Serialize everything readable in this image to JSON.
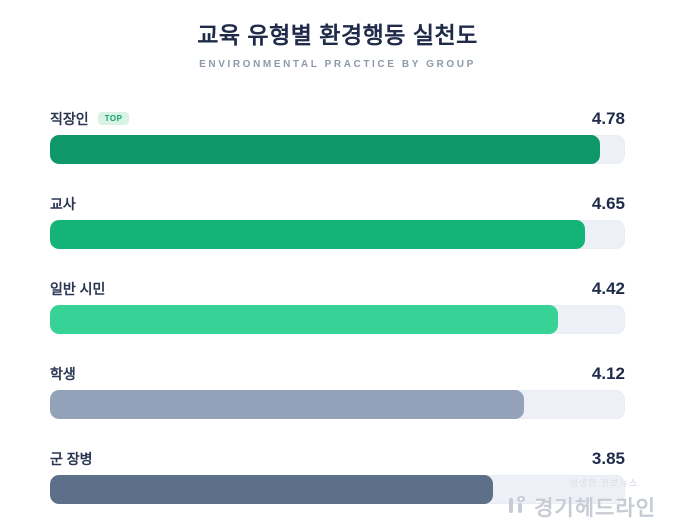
{
  "header": {
    "title": "교육 유형별 환경행동 실천도",
    "subtitle": "ENVIRONMENTAL PRACTICE BY GROUP"
  },
  "chart_data": {
    "type": "bar",
    "orientation": "horizontal",
    "title": "교육 유형별 환경행동 실천도",
    "subtitle": "ENVIRONMENTAL PRACTICE BY GROUP",
    "categories": [
      "직장인",
      "교사",
      "일반 시민",
      "학생",
      "군 장병"
    ],
    "values": [
      4.78,
      4.65,
      4.42,
      4.12,
      3.85
    ],
    "value_max": 5,
    "value_min": 0,
    "grid": false,
    "data_labels_position": "right-of-label-row",
    "bar_colors": [
      "#0e9769",
      "#14b377",
      "#37d296",
      "#93a2b8",
      "#5d7089"
    ],
    "track_color": "#edf1f7",
    "top_badge": {
      "label": "TOP",
      "row_index": 0,
      "bg": "#d8f3e6",
      "color": "#16a26b"
    }
  },
  "colors": {
    "title": "#1f2b49",
    "subtitle": "#8e99ac",
    "category_label": "#2b3652",
    "value_label": "#1f2b49",
    "background": "#ffffff",
    "watermark": "#c6cbd4"
  },
  "watermark": {
    "slogan": "생생한 정보뉴스",
    "brand": "경기헤드라인"
  }
}
